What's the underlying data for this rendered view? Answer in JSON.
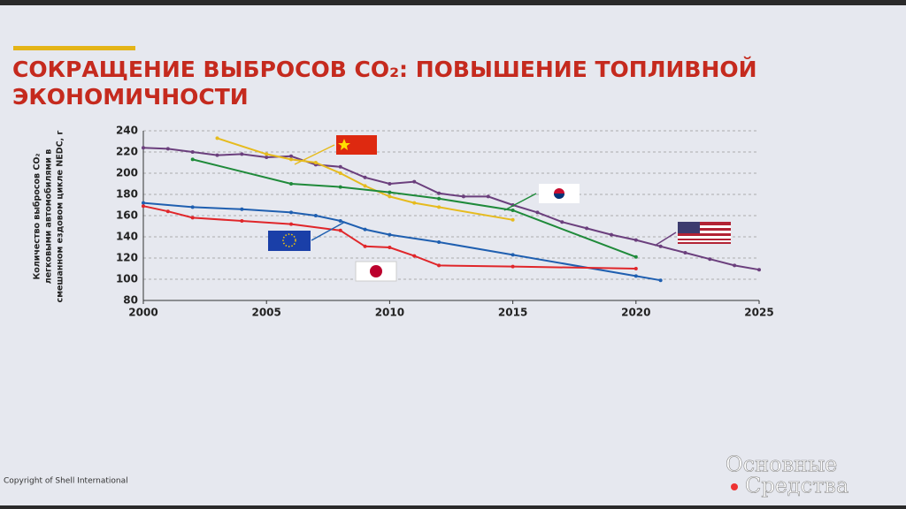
{
  "chart_data": {
    "type": "line",
    "title": [
      "СОКРАЩЕНИЕ ВЫБРОСОВ CO₂: ПОВЫШЕНИЕ ТОПЛИВНОЙ",
      "ЭКОНОМИЧНОСТИ"
    ],
    "y_label": [
      "Количество выбросов CO₂",
      "легковыми автомобилями в",
      "смешанном ездовом цикле NEDC, г"
    ],
    "xlim": [
      2000,
      2025
    ],
    "xticks": [
      2000,
      2005,
      2010,
      2015,
      2020,
      2025
    ],
    "ylim": [
      80,
      240
    ],
    "yticks": [
      80,
      100,
      120,
      140,
      160,
      180,
      200,
      220,
      240
    ],
    "grid": true,
    "series": [
      {
        "color": "#6b3f7d",
        "x": [
          2000,
          2001,
          2002,
          2003,
          2004,
          2005,
          2006,
          2007,
          2008,
          2009,
          2010,
          2011,
          2012,
          2013,
          2014,
          2015,
          2016,
          2017,
          2018,
          2019,
          2020,
          2021,
          2022,
          2023,
          2024,
          2025
        ],
        "values": [
          224,
          223,
          220,
          217,
          218,
          215,
          216,
          208,
          206,
          196,
          190,
          192,
          181,
          178,
          178,
          170,
          163,
          154,
          148,
          142,
          137,
          131,
          125,
          119,
          113,
          109
        ]
      },
      {
        "color": "#e6bb1e",
        "x": [
          2003,
          2005,
          2006,
          2007,
          2008,
          2009,
          2010,
          2011,
          2012,
          2015
        ],
        "values": [
          233,
          218,
          213,
          210,
          200,
          188,
          178,
          172,
          168,
          156
        ]
      },
      {
        "color": "#1f8a3a",
        "x": [
          2002,
          2006,
          2008,
          2010,
          2012,
          2015,
          2020
        ],
        "values": [
          213,
          190,
          187,
          182,
          176,
          165,
          121
        ]
      },
      {
        "color": "#1f5fb0",
        "x": [
          2000,
          2002,
          2004,
          2006,
          2007,
          2008,
          2009,
          2010,
          2012,
          2015,
          2020,
          2021
        ],
        "values": [
          172,
          168,
          166,
          163,
          160,
          155,
          147,
          142,
          135,
          123,
          103,
          99
        ]
      },
      {
        "color": "#e0262a",
        "x": [
          2000,
          2001,
          2002,
          2004,
          2006,
          2008,
          2009,
          2010,
          2011,
          2012,
          2015,
          2020
        ],
        "values": [
          169,
          164,
          158,
          155,
          152,
          146,
          131,
          130,
          122,
          113,
          112,
          110
        ]
      }
    ]
  },
  "footer": "Copyright of Shell International",
  "watermark": [
    "Основные",
    "Средства"
  ]
}
